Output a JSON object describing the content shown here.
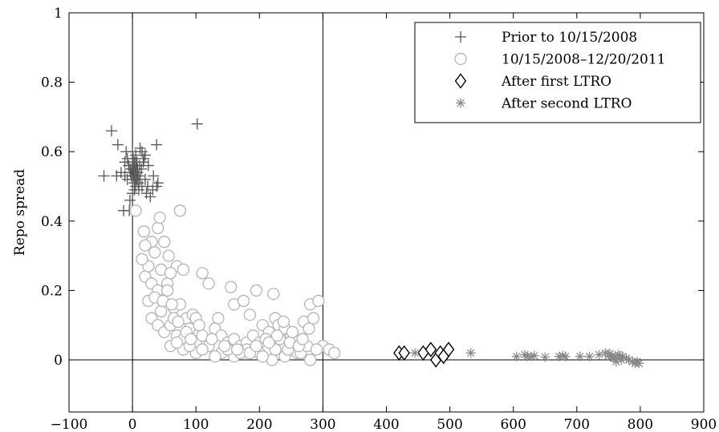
{
  "chart_data": {
    "type": "scatter",
    "title": "",
    "xlabel": "",
    "ylabel": "Repo spread",
    "xlim": [
      -100,
      900
    ],
    "ylim": [
      -0.15,
      1
    ],
    "xticks": [
      -100,
      0,
      100,
      200,
      300,
      400,
      500,
      600,
      700,
      800,
      900
    ],
    "yticks": [
      0,
      0.2,
      0.4,
      0.6,
      0.8,
      1
    ],
    "grid": false,
    "legend_position": "top-right",
    "reference_lines": {
      "horizontal": [
        0
      ],
      "vertical": [
        0,
        300
      ]
    },
    "series": [
      {
        "name": "Prior to 10/15/2008",
        "marker": "plus",
        "color": "#555555",
        "points": [
          [
            -33,
            0.66
          ],
          [
            -23,
            0.62
          ],
          [
            -10,
            0.6
          ],
          [
            12,
            0.61
          ],
          [
            20,
            0.59
          ],
          [
            38,
            0.62
          ],
          [
            102,
            0.68
          ],
          [
            -45,
            0.53
          ],
          [
            -25,
            0.53
          ],
          [
            -18,
            0.54
          ],
          [
            -12,
            0.53
          ],
          [
            -8,
            0.52
          ],
          [
            -6,
            0.56
          ],
          [
            -4,
            0.55
          ],
          [
            -3,
            0.54
          ],
          [
            -2,
            0.53
          ],
          [
            -1,
            0.55
          ],
          [
            0,
            0.52
          ],
          [
            0,
            0.56
          ],
          [
            1,
            0.54
          ],
          [
            1,
            0.58
          ],
          [
            2,
            0.55
          ],
          [
            2,
            0.53
          ],
          [
            3,
            0.57
          ],
          [
            3,
            0.51
          ],
          [
            4,
            0.54
          ],
          [
            4,
            0.52
          ],
          [
            5,
            0.56
          ],
          [
            5,
            0.5
          ],
          [
            6,
            0.55
          ],
          [
            6,
            0.53
          ],
          [
            7,
            0.52
          ],
          [
            7,
            0.57
          ],
          [
            8,
            0.54
          ],
          [
            8,
            0.55
          ],
          [
            9,
            0.51
          ],
          [
            10,
            0.53
          ],
          [
            11,
            0.56
          ],
          [
            12,
            0.52
          ],
          [
            14,
            0.55
          ],
          [
            15,
            0.5
          ],
          [
            17,
            0.57
          ],
          [
            20,
            0.52
          ],
          [
            22,
            0.48
          ],
          [
            25,
            0.56
          ],
          [
            28,
            0.47
          ],
          [
            33,
            0.53
          ],
          [
            38,
            0.5
          ],
          [
            40,
            0.51
          ],
          [
            -4,
            0.46
          ],
          [
            -5,
            0.43
          ],
          [
            -14,
            0.43
          ],
          [
            0,
            0.48
          ],
          [
            3,
            0.49
          ],
          [
            10,
            0.49
          ],
          [
            24,
            0.5
          ],
          [
            32,
            0.49
          ],
          [
            15,
            0.6
          ],
          [
            18,
            0.58
          ],
          [
            -12,
            0.57
          ],
          [
            -8,
            0.58
          ],
          [
            0,
            0.6
          ],
          [
            5,
            0.59
          ]
        ]
      },
      {
        "name": "10/15/2008–12/20/2011",
        "marker": "circle",
        "color": "#b4b4b4",
        "points": [
          [
            5,
            0.43
          ],
          [
            18,
            0.37
          ],
          [
            40,
            0.38
          ],
          [
            30,
            0.34
          ],
          [
            43,
            0.41
          ],
          [
            75,
            0.43
          ],
          [
            20,
            0.33
          ],
          [
            50,
            0.34
          ],
          [
            57,
            0.3
          ],
          [
            35,
            0.31
          ],
          [
            45,
            0.26
          ],
          [
            70,
            0.27
          ],
          [
            80,
            0.26
          ],
          [
            20,
            0.24
          ],
          [
            30,
            0.22
          ],
          [
            40,
            0.2
          ],
          [
            55,
            0.22
          ],
          [
            60,
            0.25
          ],
          [
            25,
            0.17
          ],
          [
            35,
            0.18
          ],
          [
            45,
            0.14
          ],
          [
            55,
            0.2
          ],
          [
            65,
            0.15
          ],
          [
            75,
            0.16
          ],
          [
            85,
            0.12
          ],
          [
            95,
            0.13
          ],
          [
            100,
            0.12
          ],
          [
            110,
            0.25
          ],
          [
            120,
            0.22
          ],
          [
            135,
            0.12
          ],
          [
            30,
            0.12
          ],
          [
            40,
            0.1
          ],
          [
            50,
            0.08
          ],
          [
            60,
            0.1
          ],
          [
            70,
            0.07
          ],
          [
            80,
            0.06
          ],
          [
            90,
            0.09
          ],
          [
            100,
            0.05
          ],
          [
            110,
            0.07
          ],
          [
            130,
            0.09
          ],
          [
            140,
            0.07
          ],
          [
            150,
            0.05
          ],
          [
            160,
            0.06
          ],
          [
            170,
            0.04
          ],
          [
            180,
            0.05
          ],
          [
            155,
            0.21
          ],
          [
            160,
            0.16
          ],
          [
            175,
            0.17
          ],
          [
            185,
            0.13
          ],
          [
            195,
            0.2
          ],
          [
            205,
            0.1
          ],
          [
            215,
            0.08
          ],
          [
            222,
            0.19
          ],
          [
            225,
            0.12
          ],
          [
            230,
            0.1
          ],
          [
            240,
            0.09
          ],
          [
            250,
            0.07
          ],
          [
            260,
            0.05
          ],
          [
            270,
            0.11
          ],
          [
            280,
            0.16
          ],
          [
            285,
            0.12
          ],
          [
            293,
            0.17
          ],
          [
            300,
            0.04
          ],
          [
            310,
            0.03
          ],
          [
            318,
            0.02
          ],
          [
            60,
            0.04
          ],
          [
            80,
            0.03
          ],
          [
            100,
            0.02
          ],
          [
            120,
            0.04
          ],
          [
            140,
            0.02
          ],
          [
            160,
            0.01
          ],
          [
            180,
            0.03
          ],
          [
            200,
            0.02
          ],
          [
            220,
            0.0
          ],
          [
            240,
            0.01
          ],
          [
            260,
            0.02
          ],
          [
            280,
            0.0
          ],
          [
            190,
            0.07
          ],
          [
            200,
            0.05
          ],
          [
            210,
            0.06
          ],
          [
            235,
            0.04
          ],
          [
            245,
            0.03
          ],
          [
            255,
            0.06
          ],
          [
            265,
            0.02
          ],
          [
            275,
            0.04
          ],
          [
            290,
            0.03
          ],
          [
            150,
            0.03
          ],
          [
            170,
            0.02
          ],
          [
            130,
            0.01
          ],
          [
            110,
            0.03
          ],
          [
            90,
            0.04
          ],
          [
            70,
            0.05
          ],
          [
            65,
            0.12
          ],
          [
            85,
            0.08
          ],
          [
            105,
            0.1
          ],
          [
            125,
            0.06
          ],
          [
            145,
            0.04
          ],
          [
            165,
            0.03
          ],
          [
            185,
            0.02
          ],
          [
            205,
            0.01
          ],
          [
            225,
            0.03
          ],
          [
            232,
            0.06
          ],
          [
            248,
            0.05
          ],
          [
            262,
            0.04
          ],
          [
            25,
            0.27
          ],
          [
            15,
            0.29
          ],
          [
            48,
            0.17
          ],
          [
            62,
            0.16
          ],
          [
            72,
            0.11
          ],
          [
            92,
            0.06
          ],
          [
            195,
            0.04
          ],
          [
            215,
            0.05
          ],
          [
            228,
            0.07
          ],
          [
            238,
            0.11
          ],
          [
            252,
            0.08
          ],
          [
            268,
            0.06
          ],
          [
            278,
            0.09
          ]
        ]
      },
      {
        "name": "After first LTRO",
        "marker": "diamond",
        "color": "#000000",
        "points": [
          [
            420,
            0.02
          ],
          [
            428,
            0.02
          ],
          [
            458,
            0.02
          ],
          [
            470,
            0.03
          ],
          [
            478,
            0.0
          ],
          [
            485,
            0.02
          ],
          [
            490,
            0.01
          ],
          [
            498,
            0.03
          ]
        ]
      },
      {
        "name": "After second LTRO",
        "marker": "asterisk",
        "color": "#888888",
        "points": [
          [
            445,
            0.02
          ],
          [
            533,
            0.02
          ],
          [
            605,
            0.01
          ],
          [
            618,
            0.015
          ],
          [
            622,
            0.01
          ],
          [
            628,
            0.01
          ],
          [
            633,
            0.012
          ],
          [
            650,
            0.008
          ],
          [
            672,
            0.01
          ],
          [
            678,
            0.012
          ],
          [
            682,
            0.01
          ],
          [
            705,
            0.01
          ],
          [
            720,
            0.01
          ],
          [
            735,
            0.015
          ],
          [
            745,
            0.02
          ],
          [
            750,
            0.012
          ],
          [
            755,
            0.01
          ],
          [
            758,
            0.005
          ],
          [
            762,
            -0.005
          ],
          [
            765,
            0.015
          ],
          [
            770,
            0.0
          ],
          [
            772,
            0.01
          ],
          [
            778,
            0.005
          ],
          [
            782,
            0.0
          ],
          [
            788,
            -0.005
          ],
          [
            792,
            -0.01
          ],
          [
            795,
            -0.005
          ],
          [
            798,
            -0.01
          ],
          [
            752,
            0.018
          ],
          [
            760,
            0.008
          ],
          [
            768,
            0.012
          ]
        ]
      }
    ]
  }
}
